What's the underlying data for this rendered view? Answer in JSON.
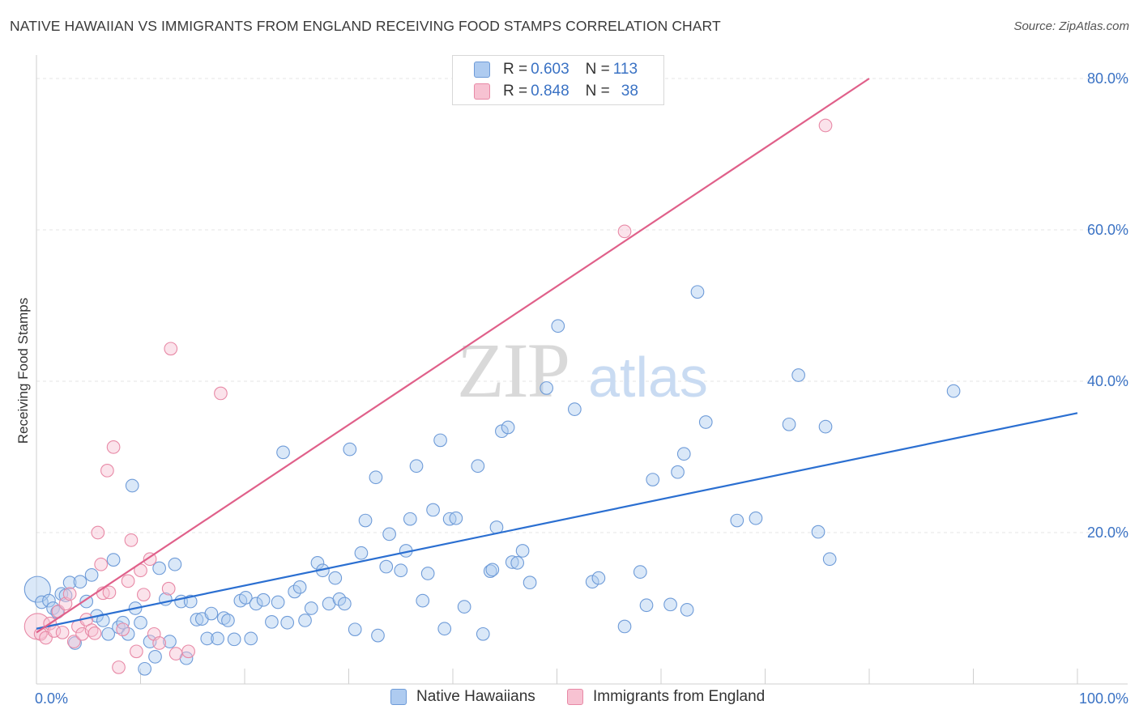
{
  "title": "NATIVE HAWAIIAN VS IMMIGRANTS FROM ENGLAND RECEIVING FOOD STAMPS CORRELATION CHART",
  "source": "Source: ZipAtlas.com",
  "watermark": {
    "zip": "ZIP",
    "atlas": "atlas"
  },
  "legend": {
    "rows": [
      {
        "r_label": "R = ",
        "r_value": "0.603",
        "n_label": "N = ",
        "n_value": "113",
        "color": "#aecbf0",
        "border": "#6e9bd8"
      },
      {
        "r_label": "R = ",
        "r_value": "0.848",
        "n_label": "N = ",
        "n_value": "38",
        "color": "#f7c2d2",
        "border": "#e889a6"
      }
    ]
  },
  "bottom_legend": {
    "series1": "Native Hawaiians",
    "series2": "Immigrants from England"
  },
  "chart_data": {
    "type": "scatter",
    "title": "NATIVE HAWAIIAN VS IMMIGRANTS FROM ENGLAND RECEIVING FOOD STAMPS CORRELATION CHART",
    "xlabel": "",
    "ylabel": "Receiving Food Stamps",
    "xlim": [
      0,
      100
    ],
    "ylim": [
      0,
      80
    ],
    "x_tick_labels": {
      "left": "0.0%",
      "right": "100.0%"
    },
    "y_ticks": [
      20,
      40,
      60,
      80
    ],
    "y_tick_labels": [
      "20.0%",
      "40.0%",
      "60.0%",
      "80.0%"
    ],
    "grid": true,
    "series": [
      {
        "name": "Native Hawaiians",
        "color": "#6e9bd8",
        "fill": "#aecbf0",
        "line_color": "#2b6fd1",
        "trend": {
          "x0": 0,
          "y0": 7.3,
          "x1": 100,
          "y1": 35.8
        },
        "points": [
          [
            0.1,
            12.5
          ],
          [
            0.5,
            10.8
          ],
          [
            1.2,
            11.0
          ],
          [
            1.6,
            10.0
          ],
          [
            2.0,
            9.5
          ],
          [
            2.4,
            11.9
          ],
          [
            2.8,
            11.7
          ],
          [
            3.2,
            13.4
          ],
          [
            3.7,
            5.4
          ],
          [
            4.2,
            13.5
          ],
          [
            4.8,
            10.9
          ],
          [
            5.3,
            14.4
          ],
          [
            5.8,
            9.0
          ],
          [
            6.4,
            8.4
          ],
          [
            6.9,
            6.6
          ],
          [
            7.4,
            16.4
          ],
          [
            7.9,
            7.5
          ],
          [
            8.3,
            8.1
          ],
          [
            8.8,
            6.6
          ],
          [
            9.2,
            26.2
          ],
          [
            9.5,
            10.0
          ],
          [
            10.0,
            8.1
          ],
          [
            10.4,
            2.0
          ],
          [
            10.9,
            5.6
          ],
          [
            11.4,
            3.6
          ],
          [
            11.8,
            15.3
          ],
          [
            12.4,
            11.2
          ],
          [
            12.8,
            5.6
          ],
          [
            13.3,
            15.8
          ],
          [
            13.9,
            10.9
          ],
          [
            14.4,
            3.4
          ],
          [
            14.8,
            10.9
          ],
          [
            15.4,
            8.5
          ],
          [
            15.9,
            8.6
          ],
          [
            16.4,
            6.0
          ],
          [
            16.8,
            9.3
          ],
          [
            17.4,
            6.0
          ],
          [
            18.0,
            8.7
          ],
          [
            18.4,
            8.4
          ],
          [
            19.0,
            5.9
          ],
          [
            19.6,
            11.0
          ],
          [
            20.1,
            11.4
          ],
          [
            20.6,
            6.0
          ],
          [
            21.1,
            10.6
          ],
          [
            21.8,
            11.1
          ],
          [
            22.6,
            8.2
          ],
          [
            23.2,
            10.8
          ],
          [
            23.7,
            30.6
          ],
          [
            24.1,
            8.1
          ],
          [
            24.8,
            12.2
          ],
          [
            25.3,
            12.8
          ],
          [
            25.8,
            8.4
          ],
          [
            26.4,
            10.0
          ],
          [
            27.0,
            16.0
          ],
          [
            27.5,
            15.0
          ],
          [
            28.1,
            10.6
          ],
          [
            28.7,
            14.0
          ],
          [
            29.1,
            11.2
          ],
          [
            29.6,
            10.6
          ],
          [
            30.1,
            31.0
          ],
          [
            30.6,
            7.2
          ],
          [
            31.2,
            17.3
          ],
          [
            31.6,
            21.6
          ],
          [
            32.6,
            27.3
          ],
          [
            32.8,
            6.4
          ],
          [
            33.6,
            15.5
          ],
          [
            33.9,
            19.8
          ],
          [
            35.0,
            15.0
          ],
          [
            35.5,
            17.6
          ],
          [
            35.9,
            21.8
          ],
          [
            36.5,
            28.8
          ],
          [
            37.1,
            11.0
          ],
          [
            37.6,
            14.6
          ],
          [
            38.1,
            23.0
          ],
          [
            38.8,
            32.2
          ],
          [
            39.2,
            7.3
          ],
          [
            39.7,
            21.8
          ],
          [
            40.3,
            21.9
          ],
          [
            41.1,
            10.2
          ],
          [
            42.4,
            28.8
          ],
          [
            42.9,
            6.6
          ],
          [
            43.6,
            14.9
          ],
          [
            43.8,
            15.1
          ],
          [
            44.2,
            20.7
          ],
          [
            44.7,
            33.4
          ],
          [
            45.3,
            33.9
          ],
          [
            45.7,
            16.1
          ],
          [
            46.2,
            16.0
          ],
          [
            46.7,
            17.6
          ],
          [
            47.4,
            13.4
          ],
          [
            49.0,
            39.1
          ],
          [
            50.1,
            47.3
          ],
          [
            51.7,
            36.3
          ],
          [
            53.4,
            13.5
          ],
          [
            54.0,
            14.0
          ],
          [
            56.5,
            7.6
          ],
          [
            58.0,
            14.8
          ],
          [
            58.6,
            10.4
          ],
          [
            59.2,
            27.0
          ],
          [
            60.9,
            10.5
          ],
          [
            61.6,
            28.0
          ],
          [
            62.2,
            30.4
          ],
          [
            62.5,
            9.8
          ],
          [
            63.5,
            51.8
          ],
          [
            64.3,
            34.6
          ],
          [
            67.3,
            21.6
          ],
          [
            69.1,
            21.9
          ],
          [
            72.3,
            34.3
          ],
          [
            73.2,
            40.8
          ],
          [
            75.1,
            20.1
          ],
          [
            75.8,
            34.0
          ],
          [
            76.2,
            16.5
          ],
          [
            88.1,
            38.7
          ]
        ]
      },
      {
        "name": "Immigrants from England",
        "color": "#e889a6",
        "fill": "#f7c2d2",
        "line_color": "#e0608a",
        "trend": {
          "x0": 0,
          "y0": 6.8,
          "x1": 80,
          "y1": 80.0
        },
        "points": [
          [
            0.1,
            7.6
          ],
          [
            0.4,
            6.6
          ],
          [
            0.9,
            6.1
          ],
          [
            1.3,
            8.0
          ],
          [
            1.7,
            7.0
          ],
          [
            2.1,
            9.6
          ],
          [
            2.5,
            6.8
          ],
          [
            2.8,
            10.6
          ],
          [
            3.2,
            11.9
          ],
          [
            3.6,
            5.6
          ],
          [
            4.0,
            7.6
          ],
          [
            4.4,
            6.6
          ],
          [
            4.8,
            8.5
          ],
          [
            5.3,
            7.1
          ],
          [
            5.6,
            6.7
          ],
          [
            5.9,
            20.0
          ],
          [
            6.2,
            15.8
          ],
          [
            6.4,
            12.0
          ],
          [
            6.8,
            28.2
          ],
          [
            7.0,
            12.1
          ],
          [
            7.4,
            31.3
          ],
          [
            7.9,
            2.2
          ],
          [
            8.3,
            7.2
          ],
          [
            8.8,
            13.6
          ],
          [
            9.1,
            19.0
          ],
          [
            9.6,
            4.3
          ],
          [
            10.0,
            15.0
          ],
          [
            10.3,
            11.8
          ],
          [
            10.9,
            16.5
          ],
          [
            11.3,
            6.6
          ],
          [
            11.8,
            5.4
          ],
          [
            12.7,
            12.6
          ],
          [
            12.9,
            44.3
          ],
          [
            13.4,
            4.0
          ],
          [
            14.6,
            4.3
          ],
          [
            17.7,
            38.4
          ],
          [
            56.5,
            59.8
          ],
          [
            75.8,
            73.8
          ]
        ]
      }
    ]
  }
}
